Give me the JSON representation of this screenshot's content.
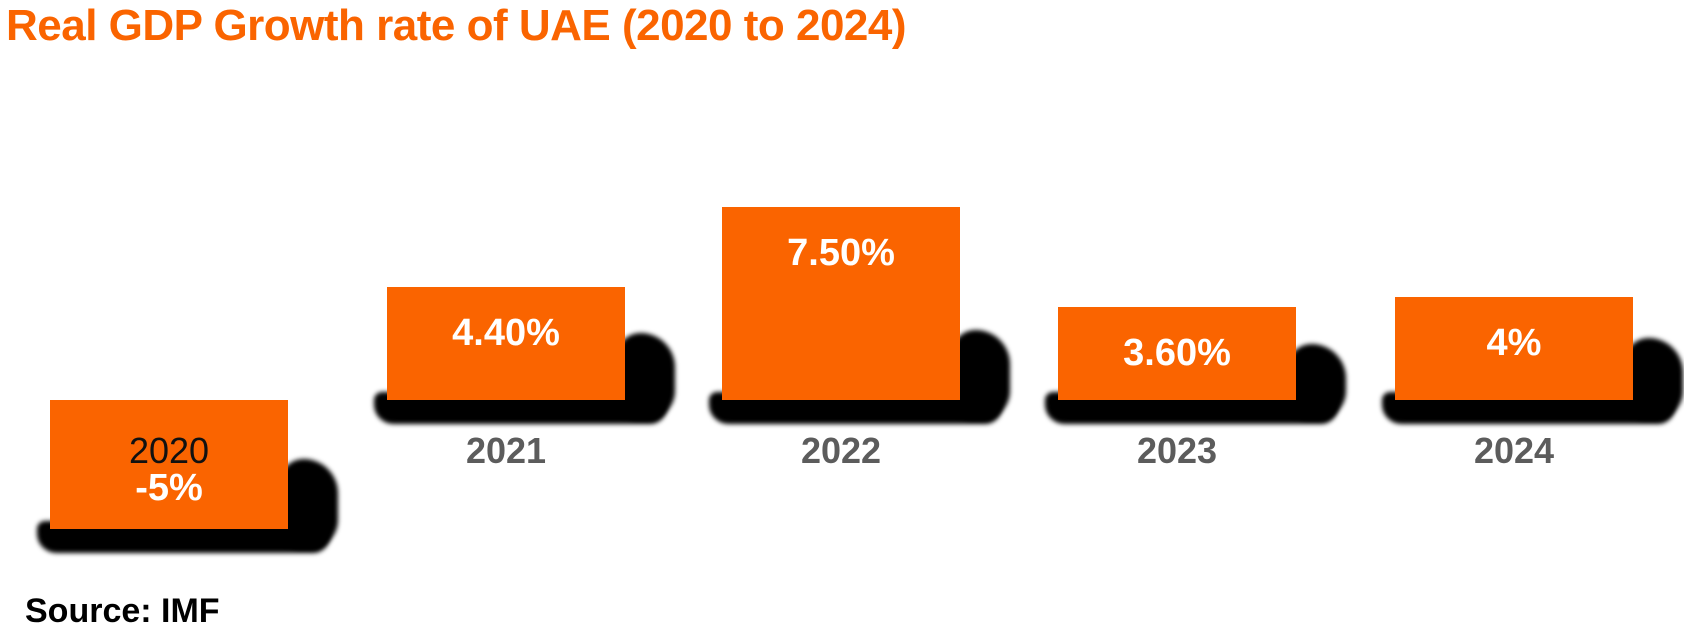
{
  "title": {
    "text": "Real GDP Growth rate of UAE (2020 to 2024)",
    "color": "#FA6400"
  },
  "source": {
    "text": "Source: IMF",
    "color": "#000000"
  },
  "chart_data": {
    "type": "bar",
    "title": "Real GDP Growth rate of UAE (2020 to 2024)",
    "categories": [
      "2020",
      "2021",
      "2022",
      "2023",
      "2024"
    ],
    "values": [
      -5,
      4.4,
      7.5,
      3.6,
      4
    ],
    "value_labels": [
      "-5%",
      "4.40%",
      "7.50%",
      "3.60%",
      "4%"
    ],
    "unit": "%",
    "bar_color": "#FA6400",
    "shadow_color": "#000000",
    "value_label_color": "#FFFFFF",
    "category_label_color": "#5C5C5C",
    "negative_bar_category_label_color": "#111111",
    "grid": false,
    "legend": "none",
    "axis_lines": "none",
    "ylim": [
      -5,
      7.5
    ],
    "source": "Source: IMF"
  }
}
